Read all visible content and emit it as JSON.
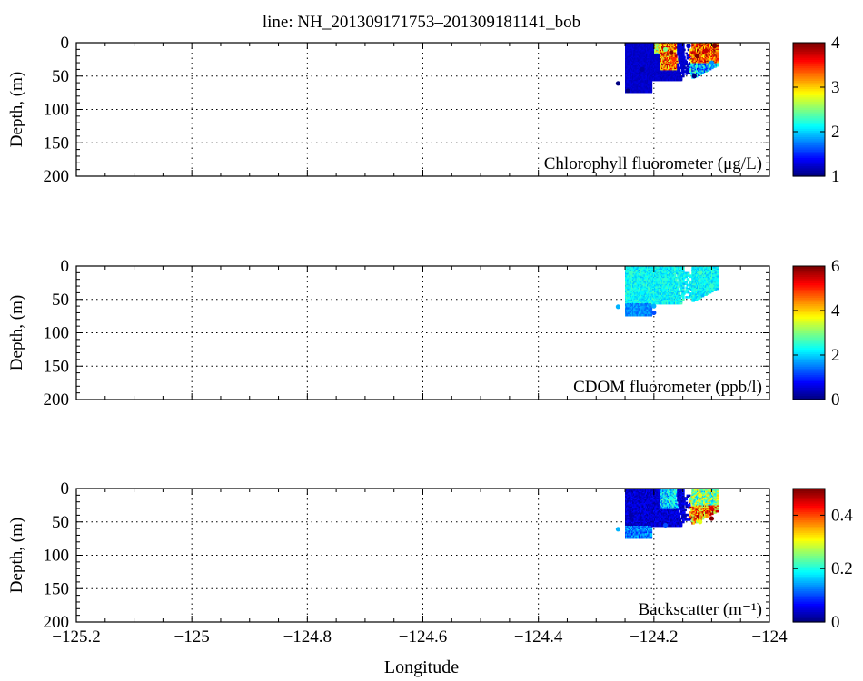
{
  "title": "line: NH_201309171753–201309181141_bob",
  "xlabel": "Longitude",
  "chart_data": [
    {
      "type": "heatmap",
      "ylabel": "Depth, (m)",
      "annotation": "Chlorophyll fluorometer (μg/L)",
      "xlim": [
        -125.2,
        -124.0
      ],
      "ylim": [
        200,
        0
      ],
      "y_reversed": true,
      "xticks": [
        -125.2,
        -125.0,
        -124.8,
        -124.6,
        -124.4,
        -124.2,
        -124.0
      ],
      "yticks": [
        0,
        50,
        100,
        150,
        200
      ],
      "grid": true,
      "colormap": "jet",
      "clim": [
        1,
        4
      ],
      "cbar_ticks": [
        1,
        2,
        3,
        4
      ],
      "data_extent": {
        "lon": [
          -124.25,
          -124.09
        ],
        "depth": [
          0,
          72
        ]
      },
      "sample_points": [
        {
          "lon": -124.262,
          "depth": 61,
          "value": 1.0
        },
        {
          "lon": -124.245,
          "depth": 72,
          "value": 1.0
        },
        {
          "lon": -124.22,
          "depth": 40,
          "value": 1.1
        },
        {
          "lon": -124.2,
          "depth": 20,
          "value": 1.2
        },
        {
          "lon": -124.18,
          "depth": 10,
          "value": 2.5
        },
        {
          "lon": -124.17,
          "depth": 15,
          "value": 4.0
        },
        {
          "lon": -124.165,
          "depth": 25,
          "value": 3.5
        },
        {
          "lon": -124.14,
          "depth": 5,
          "value": 1.2
        },
        {
          "lon": -124.125,
          "depth": 20,
          "value": 4.0
        },
        {
          "lon": -124.11,
          "depth": 12,
          "value": 3.8
        },
        {
          "lon": -124.095,
          "depth": 5,
          "value": 4.0
        },
        {
          "lon": -124.1,
          "depth": 30,
          "value": 1.8
        },
        {
          "lon": -124.13,
          "depth": 50,
          "value": 1.0
        }
      ]
    },
    {
      "type": "heatmap",
      "ylabel": "Depth, (m)",
      "annotation": "CDOM fluorometer (ppb/l)",
      "xlim": [
        -125.2,
        -124.0
      ],
      "ylim": [
        200,
        0
      ],
      "y_reversed": true,
      "xticks": [
        -125.2,
        -125.0,
        -124.8,
        -124.6,
        -124.4,
        -124.2,
        -124.0
      ],
      "yticks": [
        0,
        50,
        100,
        150,
        200
      ],
      "grid": true,
      "colormap": "jet",
      "clim": [
        0,
        6
      ],
      "cbar_ticks": [
        0,
        2,
        4,
        6
      ],
      "data_extent": {
        "lon": [
          -124.25,
          -124.09
        ],
        "depth": [
          0,
          72
        ]
      },
      "sample_points": [
        {
          "lon": -124.262,
          "depth": 61,
          "value": 1.8
        },
        {
          "lon": -124.24,
          "depth": 10,
          "value": 2.6
        },
        {
          "lon": -124.22,
          "depth": 40,
          "value": 2.2
        },
        {
          "lon": -124.2,
          "depth": 60,
          "value": 1.8
        },
        {
          "lon": -124.18,
          "depth": 20,
          "value": 2.5
        },
        {
          "lon": -124.12,
          "depth": 10,
          "value": 2.7
        },
        {
          "lon": -124.1,
          "depth": 30,
          "value": 2.6
        },
        {
          "lon": -124.2,
          "depth": 70,
          "value": 1.2
        }
      ]
    },
    {
      "type": "heatmap",
      "ylabel": "Depth, (m)",
      "annotation": "Backscatter (m⁻¹)",
      "xlim": [
        -125.2,
        -124.0
      ],
      "ylim": [
        200,
        0
      ],
      "y_reversed": true,
      "xticks": [
        -125.2,
        -125.0,
        -124.8,
        -124.6,
        -124.4,
        -124.2,
        -124.0
      ],
      "yticks": [
        0,
        50,
        100,
        150,
        200
      ],
      "grid": true,
      "colormap": "jet",
      "clim": [
        0,
        0.5
      ],
      "cbar_ticks": [
        0,
        0.2,
        0.4
      ],
      "data_extent": {
        "lon": [
          -124.25,
          -124.09
        ],
        "depth": [
          0,
          72
        ]
      },
      "sample_points": [
        {
          "lon": -124.262,
          "depth": 61,
          "value": 0.15
        },
        {
          "lon": -124.24,
          "depth": 40,
          "value": 0.02
        },
        {
          "lon": -124.21,
          "depth": 20,
          "value": 0.05
        },
        {
          "lon": -124.18,
          "depth": 55,
          "value": 0.1
        },
        {
          "lon": -124.17,
          "depth": 15,
          "value": 0.2
        },
        {
          "lon": -124.12,
          "depth": 10,
          "value": 0.3
        },
        {
          "lon": -124.1,
          "depth": 30,
          "value": 0.45
        },
        {
          "lon": -124.1,
          "depth": 45,
          "value": 0.5
        },
        {
          "lon": -124.12,
          "depth": 50,
          "value": 0.3
        }
      ]
    }
  ]
}
